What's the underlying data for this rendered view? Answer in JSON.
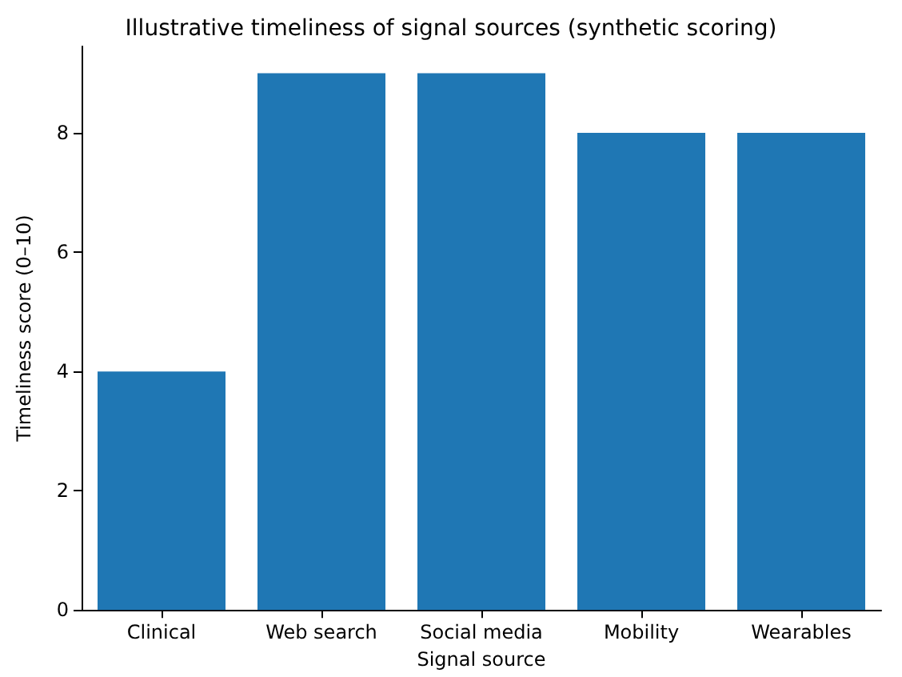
{
  "chart_data": {
    "type": "bar",
    "title": "Illustrative timeliness of signal sources (synthetic scoring)",
    "xlabel": "Signal source",
    "ylabel": "Timeliness score (0–10)",
    "categories": [
      "Clinical",
      "Web search",
      "Social media",
      "Mobility",
      "Wearables"
    ],
    "values": [
      4,
      9,
      9,
      8,
      8
    ],
    "color": "#1f77b4",
    "ylim": [
      0,
      9.45
    ],
    "yticks": [
      0,
      2,
      4,
      6,
      8
    ],
    "grid": false
  }
}
